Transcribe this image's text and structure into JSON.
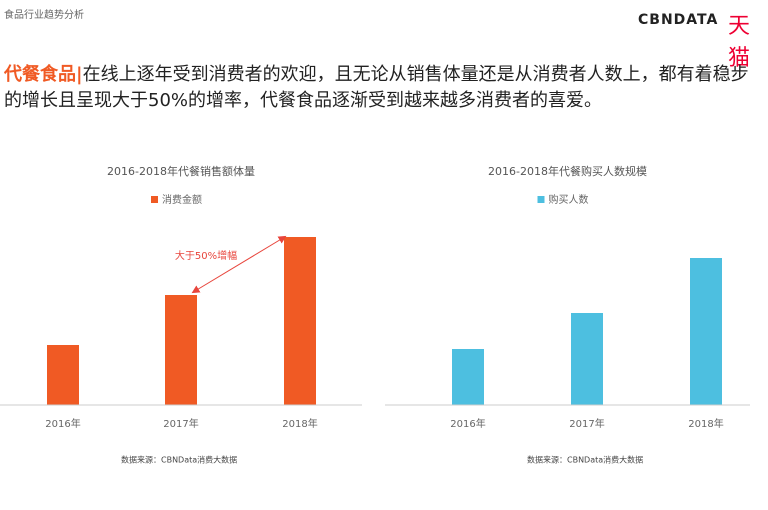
{
  "header": {
    "section": "食品行业趋势分析",
    "logo": "CBNDATA",
    "partner": "天猫"
  },
  "headline": {
    "highlight": "代餐食品|",
    "text": "在线上逐年受到消费者的欢迎，且无论从销售体量还是从消费者人数上，都有着稳步的增长且呈现大于50%的增率，代餐食品逐渐受到越来越多消费者的喜爱。"
  },
  "chart_data": [
    {
      "type": "bar",
      "title": "2016-2018年代餐销售额体量",
      "categories": [
        "2016年",
        "2017年",
        "2018年"
      ],
      "series": [
        {
          "name": "消费金额",
          "color": "#f05a24",
          "values": [
            60,
            110,
            168
          ]
        }
      ],
      "annotation": "大于50%增幅",
      "source": "数据来源：CBNData消费大数据"
    },
    {
      "type": "bar",
      "title": "2016-2018年代餐购买人数规模",
      "categories": [
        "2016年",
        "2017年",
        "2018年"
      ],
      "series": [
        {
          "name": "购买人数",
          "color": "#4dbfe0",
          "values": [
            56,
            92,
            147
          ]
        }
      ],
      "source": "数据来源：CBNData消费大数据"
    }
  ]
}
